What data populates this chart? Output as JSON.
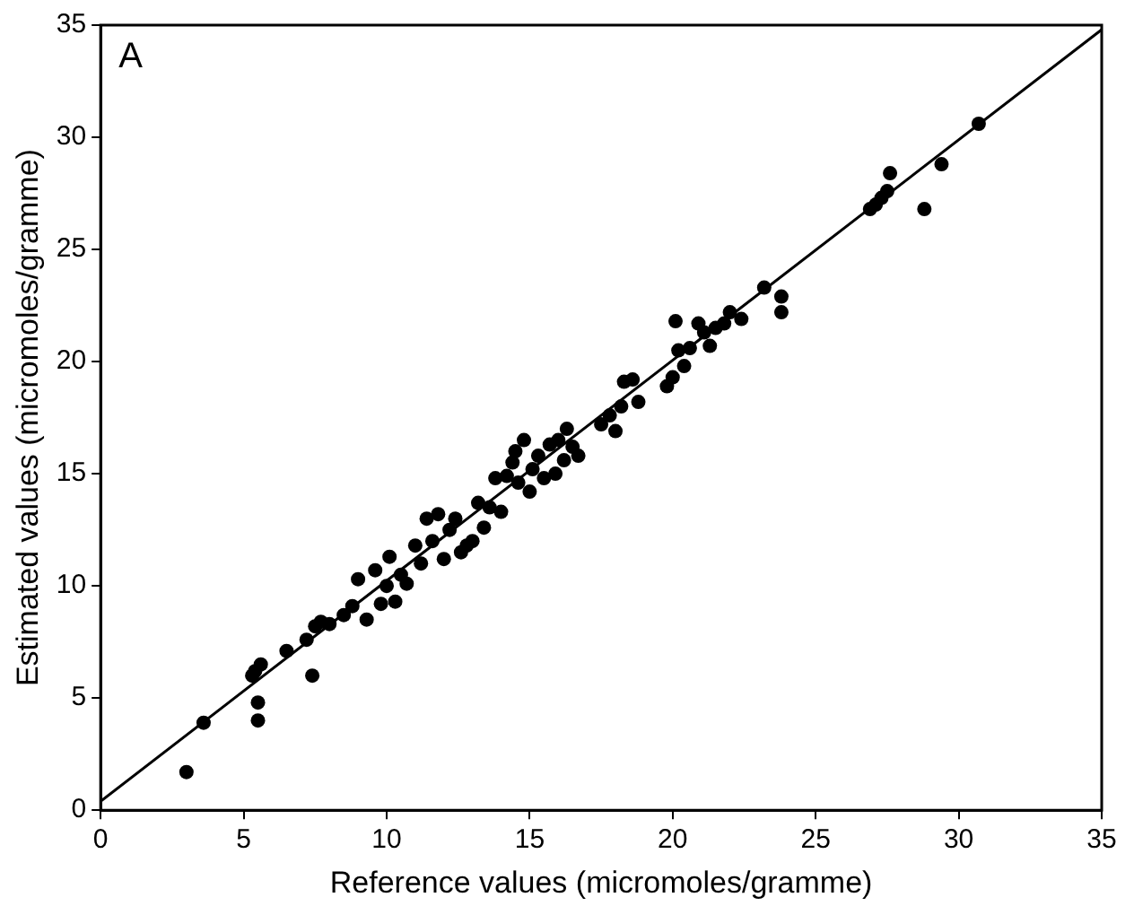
{
  "chart_data": {
    "type": "scatter",
    "xlabel": "Reference values (micromoles/gramme)",
    "ylabel": "Estimated values (micromoles/gramme)",
    "annotations": [
      "A"
    ],
    "xlim": [
      0,
      35
    ],
    "ylim": [
      0,
      35
    ],
    "xticks": [
      0,
      5,
      10,
      15,
      20,
      25,
      30,
      35
    ],
    "yticks": [
      0,
      5,
      10,
      15,
      20,
      25,
      30,
      35
    ],
    "grid": false,
    "legend": false,
    "marker": "circle",
    "series": [
      {
        "type": "scatter",
        "color": "#000000",
        "x": [
          3.0,
          3.6,
          5.3,
          5.4,
          5.5,
          5.5,
          5.6,
          6.5,
          7.2,
          7.4,
          7.5,
          7.7,
          8.0,
          8.5,
          8.8,
          9.0,
          9.3,
          9.6,
          9.8,
          10.0,
          10.1,
          10.3,
          10.5,
          10.7,
          11.0,
          11.2,
          11.4,
          11.6,
          11.8,
          12.0,
          12.2,
          12.4,
          12.6,
          12.8,
          13.0,
          13.2,
          13.4,
          13.6,
          13.8,
          14.0,
          14.2,
          14.4,
          14.5,
          14.6,
          14.8,
          15.0,
          15.1,
          15.3,
          15.5,
          15.7,
          15.9,
          16.0,
          16.2,
          16.3,
          16.5,
          16.7,
          17.5,
          17.8,
          18.0,
          18.2,
          18.3,
          18.6,
          18.8,
          19.8,
          20.0,
          20.1,
          20.2,
          20.4,
          20.6,
          20.9,
          21.1,
          21.3,
          21.5,
          21.8,
          22.0,
          22.4,
          23.2,
          23.8,
          23.8,
          26.9,
          27.1,
          27.3,
          27.5,
          27.6,
          28.8,
          29.4,
          30.7
        ],
        "values": [
          1.7,
          3.9,
          6.0,
          6.2,
          4.8,
          4.0,
          6.5,
          7.1,
          7.6,
          6.0,
          8.2,
          8.4,
          8.3,
          8.7,
          9.1,
          10.3,
          8.5,
          10.7,
          9.2,
          10.0,
          11.3,
          9.3,
          10.5,
          10.1,
          11.8,
          11.0,
          13.0,
          12.0,
          13.2,
          11.2,
          12.5,
          13.0,
          11.5,
          11.8,
          12.0,
          13.7,
          12.6,
          13.5,
          14.8,
          13.3,
          14.9,
          15.5,
          16.0,
          14.6,
          16.5,
          14.2,
          15.2,
          15.8,
          14.8,
          16.3,
          15.0,
          16.5,
          15.6,
          17.0,
          16.2,
          15.8,
          17.2,
          17.6,
          16.9,
          18.0,
          19.1,
          19.2,
          18.2,
          18.9,
          19.3,
          21.8,
          20.5,
          19.8,
          20.6,
          21.7,
          21.3,
          20.7,
          21.5,
          21.7,
          22.2,
          21.9,
          23.3,
          22.9,
          22.2,
          26.8,
          27.0,
          27.3,
          27.6,
          28.4,
          26.8,
          28.8,
          30.6
        ]
      },
      {
        "type": "line",
        "color": "#000000",
        "x": [
          0,
          35
        ],
        "values": [
          0.4,
          34.8
        ],
        "marker": "none",
        "line_style": "solid"
      }
    ]
  }
}
